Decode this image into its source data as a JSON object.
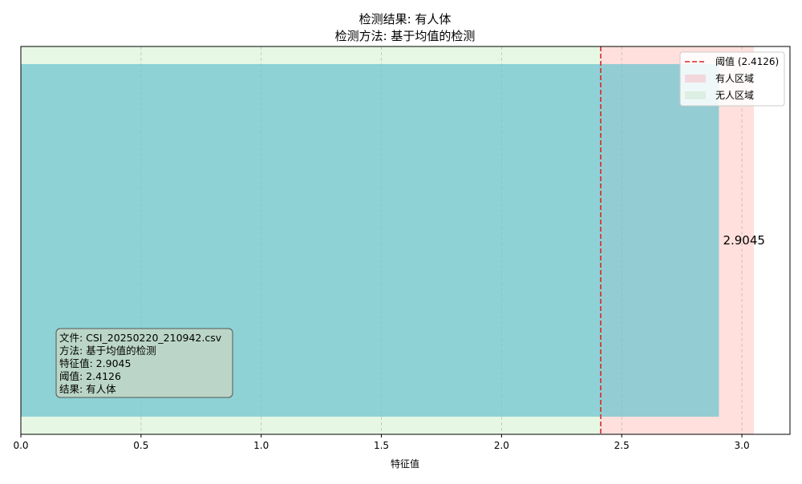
{
  "chart_data": {
    "type": "bar",
    "orientation": "horizontal",
    "title_line1": "检测结果: 有人体",
    "title_line2": "检测方法: 基于均值的检测",
    "xlabel": "特征值",
    "xlim": [
      0,
      3.2
    ],
    "xticks": [
      "0.0",
      "0.5",
      "1.0",
      "1.5",
      "2.0",
      "2.5",
      "3.0"
    ],
    "grid": "x",
    "value": 2.9045,
    "value_label": "2.9045",
    "threshold": 2.4126,
    "zones": [
      {
        "name": "有人区域",
        "from": 2.4126,
        "to": 3.05,
        "color": "#ffe0dc"
      },
      {
        "name": "无人区域",
        "from": 0,
        "to": 2.4126,
        "color": "#e6f8e4"
      }
    ],
    "bar_color": "#70c6d0",
    "threshold_color": "#d62728",
    "legend": {
      "placement": "top-right",
      "entries": [
        {
          "label": "阈值 (2.4126)",
          "kind": "dashed-line",
          "color": "#d62728"
        },
        {
          "label": "有人区域",
          "kind": "patch",
          "color": "#f2d8dc"
        },
        {
          "label": "无人区域",
          "kind": "patch",
          "color": "#dcefe2"
        }
      ]
    },
    "info_box": {
      "lines": [
        "文件: CSI_20250220_210942.csv",
        "方法: 基于均值的检测",
        "特征值: 2.9045",
        "阈值: 2.4126",
        "结果: 有人体"
      ],
      "fill": "#c0d6c6"
    }
  }
}
